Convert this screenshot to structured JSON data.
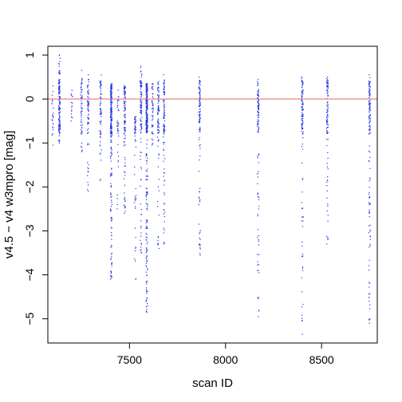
{
  "chart_data": {
    "type": "scatter",
    "title": "",
    "xlabel": "scan ID",
    "ylabel": "v4.5 − v4 w3mpro [mag]",
    "xlim": [
      7075,
      8790
    ],
    "ylim": [
      -5.55,
      1.2
    ],
    "x_ticks": [
      7500,
      8000,
      8500
    ],
    "y_ticks": [
      1,
      0,
      -1,
      -2,
      -3,
      -4,
      -5
    ],
    "x_tick_labels": [
      "7500",
      "8000",
      "8500"
    ],
    "y_tick_labels": [
      "1",
      "0",
      "−1",
      "−2",
      "−3",
      "−4",
      "−5"
    ],
    "reference_line": {
      "y": 0,
      "color": "#f08080"
    },
    "point_color": "#2233dd",
    "grid": false,
    "legend": "none",
    "clusters": [
      {
        "x": 7100,
        "ymin": -1.05,
        "ymax": 0.3,
        "count": 25
      },
      {
        "x": 7135,
        "ymin": -1.0,
        "ymax": 1.0,
        "count": 140
      },
      {
        "x": 7200,
        "ymin": -0.5,
        "ymax": 0.2,
        "count": 15
      },
      {
        "x": 7250,
        "ymin": -1.2,
        "ymax": 0.65,
        "count": 60
      },
      {
        "x": 7285,
        "ymin": -2.1,
        "ymax": 0.55,
        "count": 70
      },
      {
        "x": 7350,
        "ymin": -1.85,
        "ymax": 0.55,
        "count": 70
      },
      {
        "x": 7405,
        "ymin": -4.1,
        "ymax": 0.35,
        "count": 260
      },
      {
        "x": 7440,
        "ymin": -2.5,
        "ymax": 0.2,
        "count": 40
      },
      {
        "x": 7475,
        "ymin": -2.6,
        "ymax": 0.3,
        "count": 110
      },
      {
        "x": 7530,
        "ymin": -4.1,
        "ymax": -0.4,
        "count": 60
      },
      {
        "x": 7560,
        "ymin": -3.5,
        "ymax": 0.75,
        "count": 120
      },
      {
        "x": 7590,
        "ymin": -4.85,
        "ymax": 0.35,
        "count": 320
      },
      {
        "x": 7620,
        "ymin": -1.05,
        "ymax": 0.35,
        "count": 50
      },
      {
        "x": 7650,
        "ymin": -3.4,
        "ymax": 0.4,
        "count": 90
      },
      {
        "x": 7680,
        "ymin": -3.3,
        "ymax": 0.55,
        "count": 110
      },
      {
        "x": 7865,
        "ymin": -3.55,
        "ymax": 0.5,
        "count": 110
      },
      {
        "x": 8170,
        "ymin": -4.95,
        "ymax": 0.45,
        "count": 120
      },
      {
        "x": 8400,
        "ymin": -5.35,
        "ymax": 0.5,
        "count": 130
      },
      {
        "x": 8530,
        "ymin": -3.3,
        "ymax": 0.5,
        "count": 110
      },
      {
        "x": 8750,
        "ymin": -5.1,
        "ymax": 0.55,
        "count": 140
      }
    ]
  }
}
